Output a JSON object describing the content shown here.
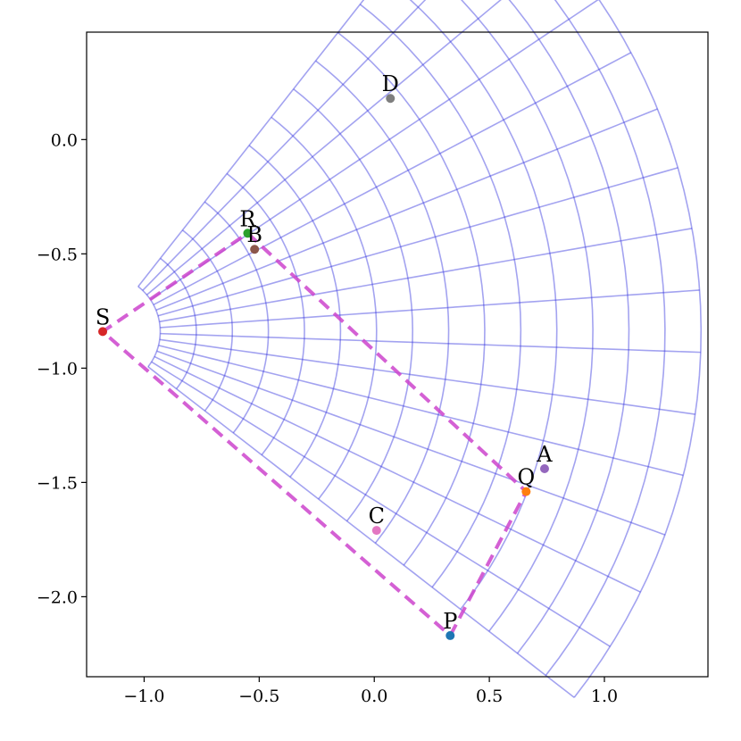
{
  "chart_data": {
    "type": "scatter",
    "title": "",
    "xlabel": "",
    "ylabel": "",
    "xlim": [
      -1.25,
      1.45
    ],
    "ylim": [
      -2.35,
      0.47
    ],
    "grid": false,
    "x_ticks": [
      {
        "value": -1.0,
        "label": "−1.0"
      },
      {
        "value": -0.5,
        "label": "−0.5"
      },
      {
        "value": 0.0,
        "label": "0.0"
      },
      {
        "value": 0.5,
        "label": "0.5"
      },
      {
        "value": 1.0,
        "label": "1.0"
      }
    ],
    "y_ticks": [
      {
        "value": 0.0,
        "label": "0.0"
      },
      {
        "value": -0.5,
        "label": "−0.5"
      },
      {
        "value": -1.0,
        "label": "−1.0"
      },
      {
        "value": -1.5,
        "label": "−1.5"
      },
      {
        "value": -2.0,
        "label": "−2.0"
      }
    ],
    "points": [
      {
        "label": "A",
        "x": 0.74,
        "y": -1.44,
        "color": "#9467bd"
      },
      {
        "label": "B",
        "x": -0.52,
        "y": -0.48,
        "color": "#8c564b"
      },
      {
        "label": "C",
        "x": 0.01,
        "y": -1.71,
        "color": "#e377c2"
      },
      {
        "label": "D",
        "x": 0.07,
        "y": 0.18,
        "color": "#7f7f7f"
      },
      {
        "label": "P",
        "x": 0.33,
        "y": -2.17,
        "color": "#1f77b4"
      },
      {
        "label": "Q",
        "x": 0.66,
        "y": -1.54,
        "color": "#ff7f0e"
      },
      {
        "label": "R",
        "x": -0.55,
        "y": -0.41,
        "color": "#2ca02c"
      },
      {
        "label": "S",
        "x": -1.18,
        "y": -0.84,
        "color": "#d62728"
      }
    ],
    "polygon": {
      "vertices": [
        "P",
        "Q",
        "R",
        "S"
      ],
      "color": "#cc44cc",
      "style": "dashed"
    },
    "mesh": {
      "color": "#3333dd",
      "center": [
        -1.18,
        -0.84
      ],
      "radius_range": [
        0.25,
        2.6
      ],
      "angle_range_deg": [
        -38,
        52
      ]
    }
  }
}
